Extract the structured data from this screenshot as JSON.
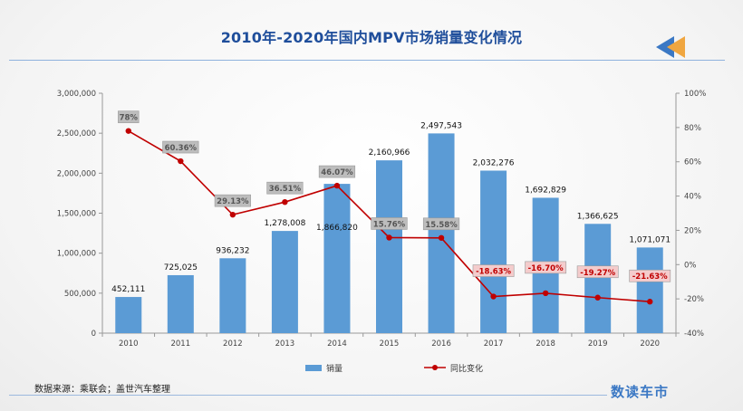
{
  "page": {
    "title": "2010年-2020年国内MPV市场销量变化情况",
    "source": "数据来源：乘联会；盖世汽车整理",
    "brand": "数读车市"
  },
  "colors": {
    "bar": "#5b9bd5",
    "line": "#c00000",
    "title": "#1f4e9b",
    "label_box_gray": "#bdbdbd",
    "label_box_pink": "#f4cccc"
  },
  "chart_data": {
    "type": "bar",
    "categories": [
      "2010",
      "2011",
      "2012",
      "2013",
      "2014",
      "2015",
      "2016",
      "2017",
      "2018",
      "2019",
      "2020"
    ],
    "series": [
      {
        "name": "销量",
        "type": "bar",
        "axis": "left",
        "values": [
          452111,
          725025,
          936232,
          1278008,
          1866820,
          2160966,
          2497543,
          2032276,
          1692829,
          1366625,
          1071071
        ],
        "labels": [
          "452,111",
          "725,025",
          "936,232",
          "1,278,008",
          "1,866,820",
          "2,160,966",
          "2,497,543",
          "2,032,276",
          "1,692,829",
          "1,366,625",
          "1,071,071"
        ]
      },
      {
        "name": "同比变化",
        "type": "line",
        "axis": "right",
        "values": [
          78,
          60.36,
          29.13,
          36.51,
          46.07,
          15.76,
          15.58,
          -18.63,
          -16.7,
          -19.27,
          -21.63
        ],
        "labels": [
          "78%",
          "60.36%",
          "29.13%",
          "36.51%",
          "46.07%",
          "15.76%",
          "15.58%",
          "-18.63%",
          "-16.70%",
          "-19.27%",
          "-21.63%"
        ]
      }
    ],
    "y_left": {
      "range": [
        0,
        3000000
      ],
      "ticks": [
        "0",
        "500,000",
        "1,000,000",
        "1,500,000",
        "2,000,000",
        "2,500,000",
        "3,000,000"
      ]
    },
    "y_right": {
      "range": [
        -40,
        100
      ],
      "ticks": [
        "-40%",
        "-20%",
        "0%",
        "20%",
        "40%",
        "60%",
        "80%",
        "100%"
      ]
    },
    "legend": {
      "position": "bottom",
      "items": [
        {
          "name": "销量",
          "type": "bar"
        },
        {
          "name": "同比变化",
          "type": "line"
        }
      ]
    },
    "grid": false
  }
}
